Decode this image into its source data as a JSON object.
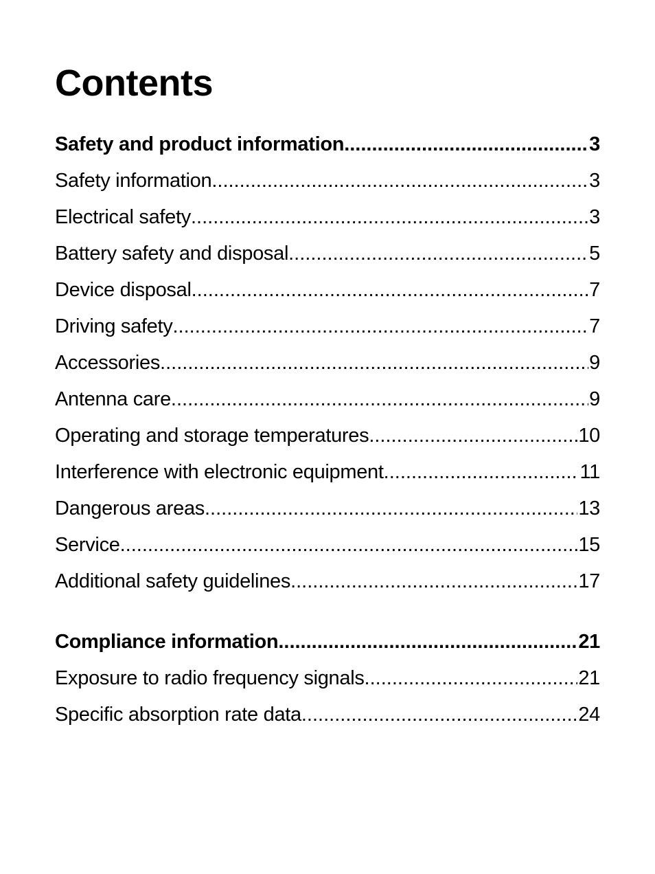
{
  "title": "Contents",
  "sections": [
    {
      "heading": {
        "label": "Safety and product information",
        "page": "3"
      },
      "entries": [
        {
          "label": "Safety information",
          "page": "3"
        },
        {
          "label": "Electrical safety",
          "page": "3"
        },
        {
          "label": "Battery safety and disposal",
          "page": "5"
        },
        {
          "label": "Device disposal",
          "page": "7"
        },
        {
          "label": "Driving safety",
          "page": "7"
        },
        {
          "label": "Accessories",
          "page": "9"
        },
        {
          "label": "Antenna care",
          "page": "9"
        },
        {
          "label": "Operating and storage temperatures",
          "page": "10"
        },
        {
          "label": "Interference with electronic equipment",
          "page": "11"
        },
        {
          "label": "Dangerous areas",
          "page": "13"
        },
        {
          "label": "Service",
          "page": "15"
        },
        {
          "label": "Additional safety guidelines",
          "page": "17"
        }
      ]
    },
    {
      "heading": {
        "label": "Compliance information",
        "page": "21"
      },
      "entries": [
        {
          "label": "Exposure to radio frequency signals",
          "page": "21"
        },
        {
          "label": "Specific absorption rate data",
          "page": "24"
        }
      ]
    }
  ]
}
